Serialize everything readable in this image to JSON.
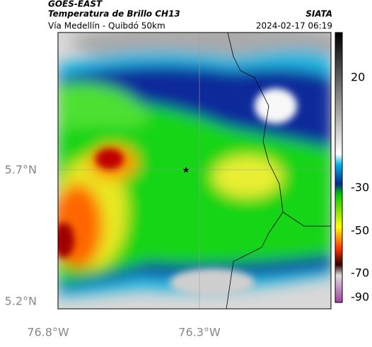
{
  "header": {
    "source": "GOES-EAST",
    "title": "Temperatura de Brillo CH13",
    "org": "SIATA",
    "subtitle": "Vía Medellín - Quibdó 50km",
    "datetime": "2024-02-17 06:19"
  },
  "map": {
    "lat_labels": [
      "5.7°N",
      "5.2°N"
    ],
    "lon_labels": [
      "76.8°W",
      "76.3°W"
    ]
  },
  "colorbar": {
    "tick_labels": [
      "20",
      "-30",
      "-50",
      "-70",
      "-90"
    ]
  }
}
